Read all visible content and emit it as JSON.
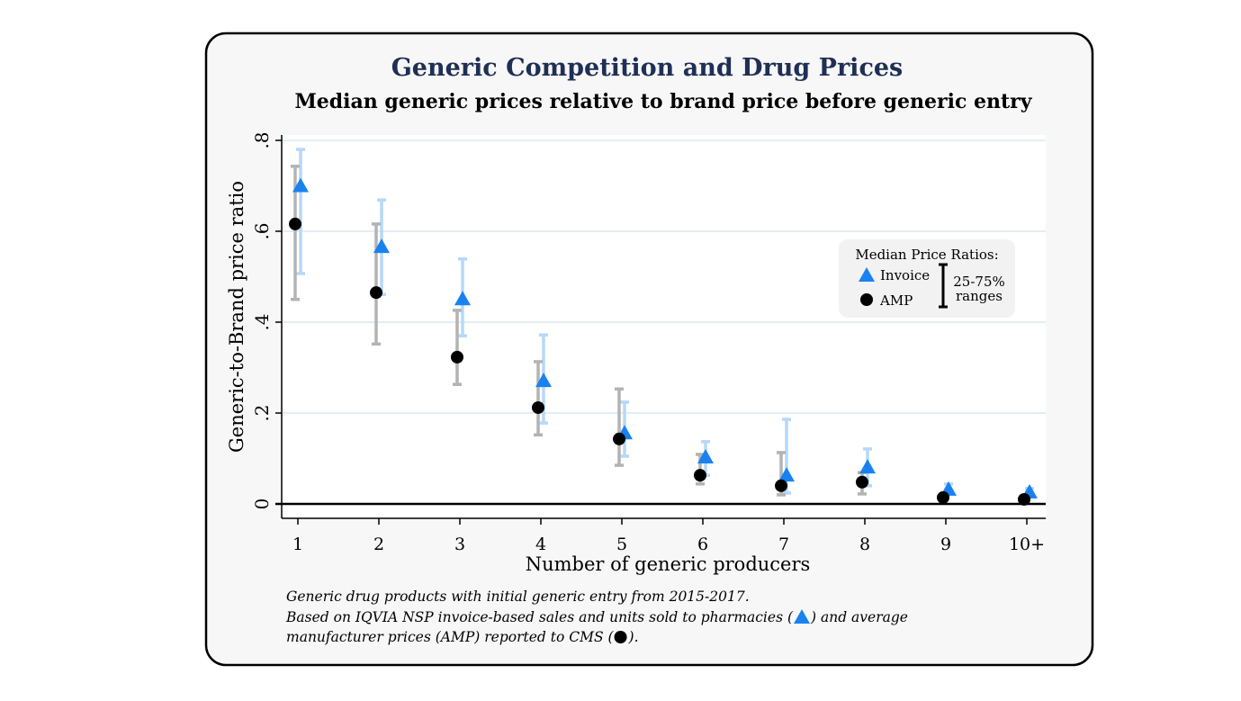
{
  "chart_data": {
    "type": "scatter",
    "title": "Generic Competition and Drug Prices",
    "subtitle": "Median generic prices relative to brand price before generic entry",
    "xlabel": "Number of generic producers",
    "ylabel": "Generic-to-Brand price ratio",
    "categories": [
      "1",
      "2",
      "3",
      "4",
      "5",
      "6",
      "7",
      "8",
      "9",
      "10+"
    ],
    "ylim": [
      0,
      0.8
    ],
    "yticks": [
      0,
      0.2,
      0.4,
      0.6,
      0.8
    ],
    "ytick_labels": [
      "0",
      ".2",
      ".4",
      ".6",
      ".8"
    ],
    "grid": true,
    "series": [
      {
        "name": "Invoice",
        "marker": "triangle",
        "color": "#1a82f0",
        "range_color": "#b5d8fb",
        "values": [
          0.7,
          0.566,
          0.451,
          0.271,
          0.156,
          0.103,
          0.063,
          0.081,
          0.032,
          0.026
        ],
        "p25": [
          0.507,
          0.461,
          0.37,
          0.178,
          0.105,
          0.063,
          0.024,
          0.04,
          0.022,
          0.018
        ],
        "p75": [
          0.78,
          0.669,
          0.539,
          0.372,
          0.224,
          0.137,
          0.186,
          0.121,
          0.044,
          0.034
        ]
      },
      {
        "name": "AMP",
        "marker": "circle",
        "color": "#000000",
        "range_color": "#b3b3b3",
        "values": [
          0.616,
          0.465,
          0.323,
          0.212,
          0.143,
          0.063,
          0.04,
          0.048,
          0.014,
          0.01
        ],
        "p25": [
          0.45,
          0.352,
          0.263,
          0.152,
          0.085,
          0.044,
          0.02,
          0.022,
          0.008,
          0.006
        ],
        "p75": [
          0.743,
          0.616,
          0.426,
          0.313,
          0.253,
          0.109,
          0.113,
          0.069,
          0.02,
          0.014
        ]
      }
    ],
    "legend": {
      "title": "Median Price Ratios:",
      "items": [
        "Invoice",
        "AMP"
      ],
      "range_label_1": "25-75%",
      "range_label_2": "ranges",
      "placement": "right"
    }
  },
  "notes": {
    "line1": "Generic drug products with initial generic entry from 2015-2017.",
    "line2a": "Based on IQVIA NSP invoice-based sales and units sold to pharmacies (",
    "line2b": ") and average",
    "line3a": "manufacturer prices (AMP) reported to CMS (",
    "line3b": ")."
  }
}
